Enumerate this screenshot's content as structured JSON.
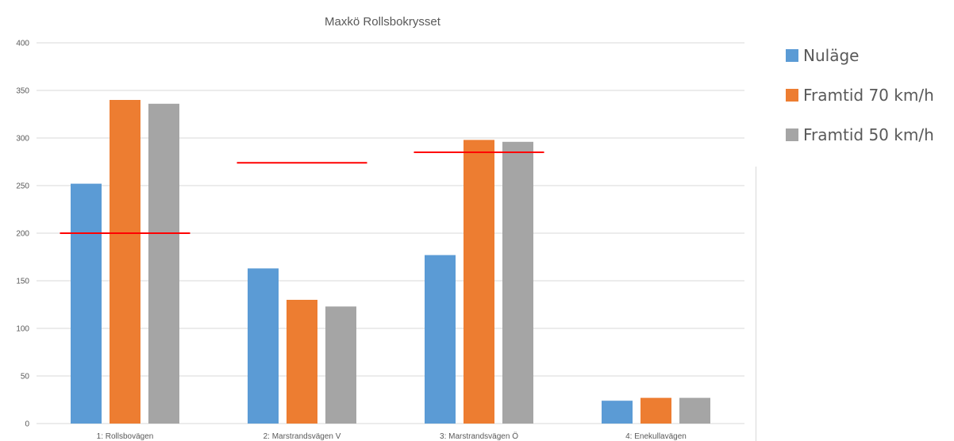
{
  "chart_data": {
    "type": "bar",
    "title": "Maxkö Rollsbokrysset",
    "categories": [
      "1: Rollsbovägen",
      "2: Marstrandsvägen V",
      "3: Marstrandsvägen Ö",
      "4: Enekullavägen"
    ],
    "series": [
      {
        "name": "Nuläge",
        "color": "#5b9bd5",
        "values": [
          252,
          163,
          177,
          24
        ]
      },
      {
        "name": "Framtid 70 km/h",
        "color": "#ed7d31",
        "values": [
          340,
          130,
          298,
          27
        ]
      },
      {
        "name": "Framtid 50 km/h",
        "color": "#a5a5a5",
        "values": [
          336,
          123,
          296,
          27
        ]
      }
    ],
    "reference_lines": [
      {
        "category": "1: Rollsbovägen",
        "value": 200,
        "color": "#ff0000"
      },
      {
        "category": "2: Marstrandsvägen V",
        "value": 274,
        "color": "#ff0000"
      },
      {
        "category": "3: Marstrandsvägen Ö",
        "value": 285,
        "color": "#ff0000"
      }
    ],
    "ylim": [
      0,
      400
    ],
    "yticks": [
      0,
      50,
      100,
      150,
      200,
      250,
      300,
      350,
      400
    ],
    "grid": true,
    "legend_position": "right"
  }
}
